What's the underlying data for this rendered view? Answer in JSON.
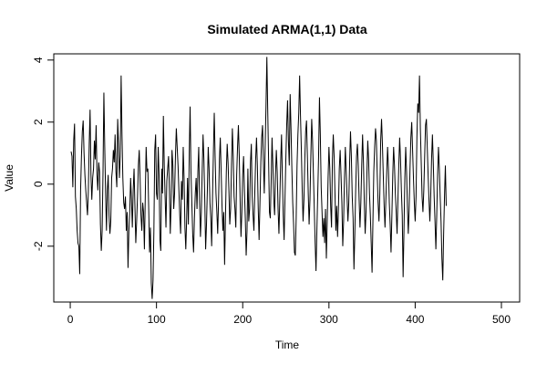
{
  "chart_data": {
    "type": "line",
    "title": "Simulated ARMA(1,1) Data",
    "xlabel": "Time",
    "ylabel": "Value",
    "xlim": [
      1,
      500
    ],
    "ylim": [
      -3.8,
      4.2
    ],
    "x_ticks": [
      0,
      100,
      200,
      300,
      400,
      500
    ],
    "x_tick_labels": [
      "0",
      "100",
      "200",
      "300",
      "400",
      "500"
    ],
    "y_ticks": [
      -2,
      0,
      2,
      4
    ],
    "y_tick_labels": [
      "-2",
      "0",
      "2",
      "4"
    ],
    "grid": false,
    "line_color": "#000000",
    "series": [
      {
        "x_start": 1,
        "x_step": 1,
        "values": [
          1.05,
          0.9,
          -0.1,
          1.4,
          1.95,
          -0.4,
          -0.8,
          -1.5,
          -1.9,
          -2.0,
          -2.9,
          -0.2,
          0.9,
          1.7,
          2.05,
          1.0,
          0.3,
          -0.2,
          -0.6,
          -1.0,
          -0.2,
          1.3,
          2.4,
          0.3,
          -0.5,
          0.2,
          0.5,
          1.4,
          0.8,
          1.9,
          0.3,
          -0.2,
          0.7,
          0.4,
          -1.3,
          -2.15,
          -1.5,
          0.4,
          2.95,
          1.2,
          -0.3,
          -1.5,
          -0.2,
          0.3,
          -1.0,
          -1.6,
          -1.2,
          0.2,
          0.5,
          1.1,
          0.7,
          1.6,
          0.4,
          -0.1,
          2.1,
          1.3,
          0.2,
          0.9,
          3.5,
          1.6,
          0.2,
          -0.6,
          -0.8,
          -0.4,
          -1.5,
          -0.9,
          -2.7,
          -1.5,
          -0.9,
          0.2,
          -0.5,
          -1.4,
          -0.2,
          0.5,
          -0.7,
          -1.9,
          -1.2,
          -0.4,
          0.6,
          1.1,
          0.2,
          -1.0,
          -1.5,
          -0.6,
          -0.9,
          -2.1,
          -0.4,
          1.2,
          0.4,
          0.5,
          -0.8,
          -2.2,
          -1.4,
          -3.2,
          -3.7,
          -3.1,
          -1.5,
          1.1,
          1.6,
          -0.3,
          -0.5,
          1.2,
          0.3,
          -1.8,
          -2.15,
          0.5,
          -0.3,
          2.2,
          0.6,
          -0.4,
          -1.4,
          0.1,
          0.5,
          0.9,
          -0.2,
          -1.6,
          -0.6,
          1.1,
          0.6,
          -0.8,
          -0.3,
          0.9,
          1.8,
          1.2,
          0.6,
          -0.2,
          -1.0,
          -1.6,
          0.1,
          -0.5,
          1.2,
          0.2,
          -1.4,
          -2.1,
          -1.1,
          0.2,
          -1.3,
          1.0,
          2.5,
          0.4,
          -0.6,
          -1.6,
          -2.2,
          -1.1,
          -0.3,
          0.2,
          -0.8,
          0.4,
          1.2,
          -0.6,
          -1.7,
          -0.9,
          0.4,
          1.6,
          0.8,
          -0.5,
          -2.1,
          -1.3,
          -0.2,
          1.2,
          0.5,
          -0.6,
          -1.1,
          -2.0,
          -0.4,
          1.0,
          2.3,
          0.9,
          -0.3,
          -0.9,
          -1.6,
          -0.5,
          0.8,
          1.5,
          0.4,
          -0.7,
          -1.5,
          -0.9,
          -2.6,
          -1.1,
          0.4,
          1.3,
          0.7,
          -0.2,
          -1.3,
          -0.8,
          0.6,
          1.8,
          0.9,
          -0.4,
          -0.8,
          -1.4,
          0.3,
          1.2,
          1.9,
          0.9,
          -0.5,
          -1.7,
          -0.9,
          0.3,
          0.9,
          -0.2,
          -1.1,
          -2.3,
          -1.5,
          0.5,
          -1.2,
          -0.8,
          0.7,
          1.3,
          -0.4,
          -1.0,
          -1.5,
          -0.3,
          0.8,
          1.5,
          0.6,
          -0.8,
          -1.8,
          -0.6,
          0.7,
          1.5,
          1.9,
          0.7,
          -0.3,
          1.2,
          2.5,
          4.1,
          2.4,
          0.8,
          -0.9,
          -1.1,
          0.1,
          1.5,
          0.6,
          -0.5,
          -1.0,
          0.3,
          1.1,
          0.4,
          -0.8,
          -1.6,
          -0.5,
          0.7,
          1.6,
          0.2,
          -1.0,
          -1.8,
          -0.5,
          0.8,
          1.9,
          2.7,
          1.4,
          0.6,
          2.9,
          1.8,
          0.5,
          -0.6,
          -1.3,
          -2.2,
          -2.3,
          -1.1,
          0.6,
          1.6,
          2.3,
          3.5,
          2.2,
          1.1,
          -0.2,
          -1.2,
          -0.5,
          0.8,
          1.7,
          2.05,
          0.9,
          -0.3,
          -1.3,
          -0.5,
          0.9,
          2.1,
          1.4,
          0.3,
          -0.8,
          -1.9,
          -2.8,
          -1.5,
          -0.3,
          0.9,
          2.8,
          1.6,
          -0.1,
          -0.9,
          -1.7,
          -1.1,
          -1.9,
          -0.8,
          -2.4,
          -1.2,
          0.2,
          1.2,
          0.5,
          -0.7,
          -1.4,
          0.8,
          1.6,
          0.9,
          -0.3,
          -1.5,
          -0.7,
          -1.7,
          -0.8,
          0.5,
          1.1,
          0.3,
          -0.6,
          -2.0,
          -1.2,
          0.2,
          1.2,
          0.4,
          -0.4,
          -1.2,
          -0.6,
          0.7,
          1.7,
          0.9,
          -0.4,
          -1.1,
          -2.75,
          -1.6,
          -0.2,
          0.9,
          1.3,
          0.6,
          -0.5,
          -1.4,
          -0.6,
          0.6,
          1.6,
          0.7,
          -0.6,
          -1.6,
          -0.9,
          0.3,
          1.4,
          0.8,
          -0.3,
          -1.0,
          -1.9,
          -2.85,
          -1.2,
          0.4,
          1.2,
          1.8,
          1.4,
          0.3,
          -0.6,
          -1.2,
          -0.3,
          1.4,
          2.1,
          1.3,
          0.3,
          -0.7,
          -1.4,
          -0.5,
          0.4,
          1.2,
          0.5,
          -0.6,
          -1.3,
          -2.2,
          -1.0,
          0.3,
          1.2,
          0.6,
          -0.3,
          -0.9,
          -1.6,
          -0.5,
          0.6,
          1.5,
          0.8,
          -0.2,
          -1.0,
          -3.0,
          -1.5,
          0.2,
          1.2,
          0.4,
          -0.7,
          -1.6,
          -0.8,
          0.5,
          1.5,
          2.0,
          1.1,
          0.2,
          -0.6,
          -1.2,
          -0.4,
          1.5,
          2.6,
          2.3,
          3.5,
          1.8,
          0.7,
          -0.4,
          -0.9,
          -0.2,
          0.9,
          1.9,
          2.1,
          1.2,
          0.3,
          -0.5,
          -1.2,
          -0.4,
          0.8,
          1.6,
          0.7,
          -0.4,
          -1.2,
          -2.1,
          -1.0,
          0.3,
          1.2,
          0.5,
          -0.4,
          -1.2,
          -2.4,
          -3.1,
          -1.6,
          -0.4,
          0.6,
          -0.7
        ]
      }
    ]
  }
}
